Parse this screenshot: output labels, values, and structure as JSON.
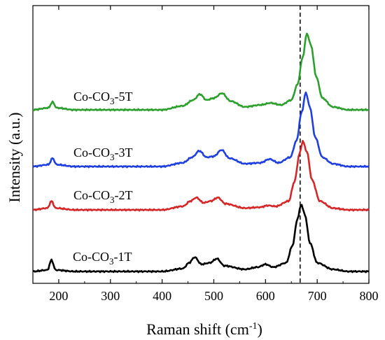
{
  "chart_data": {
    "type": "line",
    "xlabel": "Raman shift (cm",
    "xlabel_sup": "-1",
    "xlabel_close": ")",
    "ylabel": "Intensity (a.u.)",
    "xlim": [
      150,
      800
    ],
    "xticks": [
      "200",
      "300",
      "400",
      "500",
      "600",
      "700",
      "800"
    ],
    "reference_line_x": 667,
    "grid": false,
    "series": [
      {
        "label_main": "Co-CO",
        "label_sub": "3",
        "label_tail": "-5T",
        "color": "#2ca02c",
        "baseline": 0.6,
        "offset": 0,
        "x": [
          150,
          180,
          188,
          196,
          230,
          300,
          400,
          440,
          460,
          473,
          486,
          500,
          516,
          532,
          560,
          590,
          610,
          630,
          650,
          662,
          672,
          680,
          688,
          698,
          710,
          730,
          760,
          800
        ],
        "y": [
          0.6,
          0.8,
          1.4,
          0.8,
          0.6,
          0.6,
          0.6,
          1.0,
          1.6,
          2.2,
          1.6,
          1.8,
          2.3,
          1.5,
          0.9,
          1.1,
          1.3,
          1.1,
          1.6,
          3.2,
          6.0,
          8.4,
          7.2,
          4.0,
          1.8,
          0.9,
          0.6,
          0.6
        ]
      },
      {
        "label_main": "Co-CO",
        "label_sub": "3",
        "label_tail": "-3T",
        "color": "#1f3fe0",
        "baseline": 0.6,
        "offset": 0,
        "x": [
          150,
          180,
          188,
          196,
          230,
          300,
          400,
          440,
          458,
          472,
          486,
          500,
          515,
          530,
          560,
          590,
          608,
          625,
          648,
          660,
          670,
          678,
          686,
          696,
          710,
          730,
          760,
          800
        ],
        "y": [
          0.6,
          0.8,
          1.5,
          0.8,
          0.6,
          0.6,
          0.6,
          1.0,
          1.6,
          2.3,
          1.6,
          1.7,
          2.4,
          1.5,
          0.9,
          1.0,
          1.4,
          1.0,
          1.6,
          3.4,
          6.5,
          8.6,
          7.0,
          3.8,
          1.6,
          0.9,
          0.6,
          0.6
        ]
      },
      {
        "label_main": "Co-CO",
        "label_sub": "3",
        "label_tail": "-2T",
        "color": "#d62728",
        "baseline": 0.6,
        "offset": 0,
        "x": [
          150,
          178,
          186,
          194,
          230,
          300,
          400,
          440,
          455,
          466,
          480,
          494,
          508,
          522,
          560,
          590,
          604,
          620,
          645,
          656,
          666,
          672,
          680,
          690,
          705,
          730,
          760,
          800
        ],
        "y": [
          0.6,
          0.8,
          1.6,
          0.8,
          0.6,
          0.6,
          0.6,
          1.0,
          1.6,
          2.0,
          1.4,
          1.6,
          2.0,
          1.3,
          0.8,
          0.9,
          1.1,
          1.0,
          1.6,
          3.8,
          7.0,
          8.4,
          7.2,
          4.0,
          1.6,
          0.8,
          0.6,
          0.6
        ]
      },
      {
        "label_main": "Co-CO",
        "label_sub": "3",
        "label_tail": "-1T",
        "color": "#000000",
        "baseline": 0.6,
        "offset": 0,
        "x": [
          150,
          178,
          186,
          194,
          230,
          300,
          400,
          440,
          452,
          463,
          476,
          492,
          506,
          520,
          560,
          585,
          600,
          615,
          640,
          652,
          662,
          669,
          676,
          686,
          700,
          730,
          760,
          800
        ],
        "y": [
          0.6,
          0.8,
          2.2,
          0.8,
          0.6,
          0.6,
          0.6,
          1.0,
          1.8,
          2.6,
          1.6,
          1.8,
          2.4,
          1.4,
          0.9,
          1.2,
          1.6,
          1.2,
          1.8,
          4.2,
          8.0,
          10.0,
          8.6,
          4.6,
          1.8,
          0.9,
          0.6,
          0.6
        ]
      }
    ]
  }
}
